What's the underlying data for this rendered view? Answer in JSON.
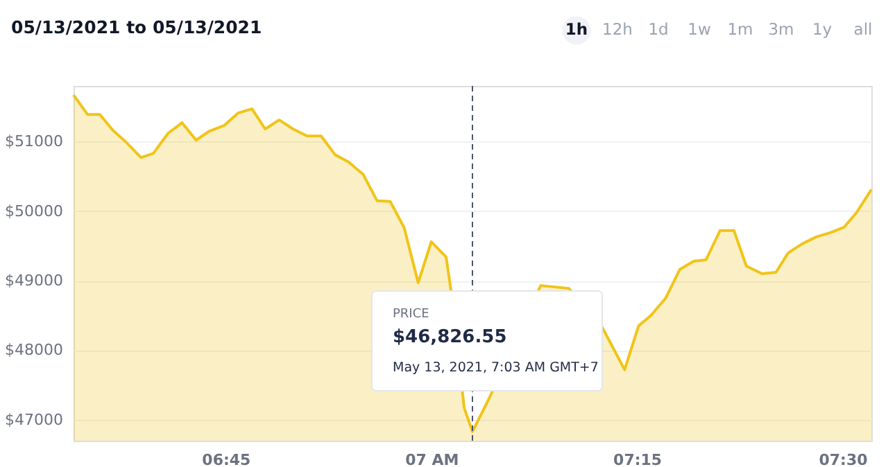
{
  "chart_data": {
    "type": "area",
    "title": "05/13/2021 to 05/13/2021",
    "x": [
      6.565,
      6.582,
      6.597,
      6.613,
      6.629,
      6.647,
      6.662,
      6.68,
      6.697,
      6.714,
      6.73,
      6.748,
      6.765,
      6.782,
      6.798,
      6.815,
      6.832,
      6.849,
      6.866,
      6.883,
      6.899,
      6.917,
      6.934,
      6.95,
      6.967,
      6.984,
      7.0,
      7.018,
      7.024,
      7.04,
      7.05,
      7.07,
      7.133,
      7.15,
      7.167,
      7.206,
      7.235,
      7.252,
      7.267,
      7.285,
      7.302,
      7.319,
      7.334,
      7.351,
      7.368,
      7.383,
      7.402,
      7.419,
      7.434,
      7.451,
      7.468,
      7.485,
      7.502,
      7.517,
      7.535
    ],
    "series": [
      {
        "color": "#f0c419",
        "values": [
          51670,
          51390,
          51390,
          51160,
          50990,
          50770,
          50830,
          51120,
          51270,
          51020,
          51150,
          51230,
          51410,
          51470,
          51180,
          51310,
          51180,
          51080,
          51080,
          50810,
          50710,
          50530,
          50150,
          50140,
          49760,
          48970,
          49560,
          49340,
          48850,
          47170,
          46830,
          47300,
          48930,
          48910,
          48890,
          48370,
          47720,
          48350,
          48500,
          48750,
          49160,
          49280,
          49300,
          49720,
          49720,
          49210,
          49100,
          49120,
          49400,
          49530,
          49630,
          49690,
          49770,
          49980,
          50310
        ]
      }
    ],
    "xlim": [
      6.565,
      7.535
    ],
    "xticks": [
      {
        "value": 6.75,
        "label": "06:45"
      },
      {
        "value": 7,
        "label": "07 AM"
      },
      {
        "value": 7.25,
        "label": "07:15"
      },
      {
        "value": 7.5,
        "label": "07:30"
      }
    ],
    "ylim": [
      46700,
      51800
    ],
    "yticks": [
      {
        "value": 47000,
        "label": "$47000"
      },
      {
        "value": 48000,
        "label": "$48000"
      },
      {
        "value": 49000,
        "label": "$49000"
      },
      {
        "value": 50000,
        "label": "$50000"
      },
      {
        "value": 51000,
        "label": "$51000"
      }
    ],
    "grid": "y",
    "ref_lines": [
      {
        "axis": "x",
        "value": 7.05,
        "color": "#4a5568",
        "line_style": "dashed"
      }
    ],
    "annotations": [
      "1h",
      "12h",
      "1d",
      "1w",
      "1m",
      "3m",
      "1y",
      "all",
      "PRICE",
      "$46,826.55",
      "May 13, 2021, 7:03 AM GMT+7"
    ]
  }
}
